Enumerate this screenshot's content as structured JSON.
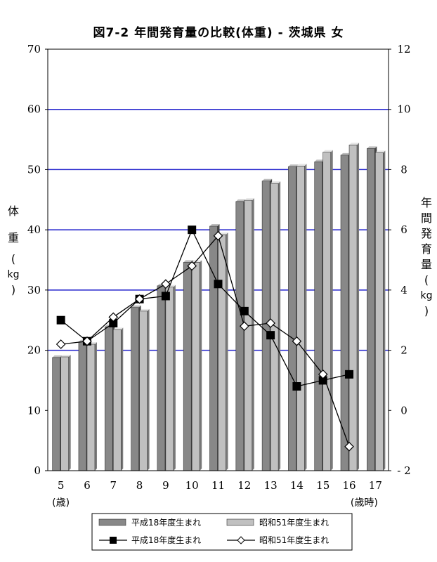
{
  "chart_data": {
    "type": "bar+line",
    "title": "図7-2 年間発育量の比較(体重) - 茨城県 女",
    "categories": [
      "5",
      "6",
      "7",
      "8",
      "9",
      "10",
      "11",
      "12",
      "13",
      "14",
      "15",
      "16",
      "17"
    ],
    "x_unit_first": "(歳)",
    "x_unit_last": "(歳時)",
    "left_axis": {
      "label_chars": [
        "体",
        "重",
        "(",
        "kg",
        ")"
      ],
      "ylim": [
        0,
        70
      ],
      "ticks": [
        0,
        10,
        20,
        30,
        40,
        50,
        60,
        70
      ]
    },
    "right_axis": {
      "label_chars": [
        "年",
        "間",
        "発",
        "育",
        "量",
        "(",
        "kg",
        ")"
      ],
      "ylim": [
        -2,
        12
      ],
      "ticks": [
        "- 2",
        "0",
        "2",
        "4",
        "6",
        "8",
        "10",
        "12"
      ]
    },
    "gridlines": [
      20,
      30,
      40,
      50,
      60
    ],
    "bar_series": [
      {
        "name": "平成18年度生まれ",
        "color": "#888888",
        "values": [
          18.8,
          21.4,
          23.9,
          27.1,
          30.7,
          34.6,
          40.6,
          44.7,
          48.1,
          50.5,
          51.3,
          52.4,
          53.5
        ]
      },
      {
        "name": "昭和51年度生まれ",
        "color": "#c0c0c0",
        "values": [
          18.9,
          21.0,
          23.4,
          26.5,
          30.5,
          34.6,
          39.2,
          44.9,
          47.7,
          50.6,
          52.9,
          54.1,
          52.8
        ]
      }
    ],
    "line_series": [
      {
        "name": "平成18年度生まれ",
        "marker": "square",
        "values": [
          3.0,
          2.3,
          2.9,
          3.7,
          3.8,
          6.0,
          4.2,
          3.3,
          2.5,
          0.8,
          1.0,
          1.2
        ]
      },
      {
        "name": "昭和51年度生まれ",
        "marker": "diamond",
        "values": [
          2.2,
          2.3,
          3.1,
          3.7,
          4.2,
          4.8,
          5.8,
          2.8,
          2.9,
          2.3,
          1.2,
          -1.2
        ]
      }
    ],
    "legend_position": "bottom"
  }
}
